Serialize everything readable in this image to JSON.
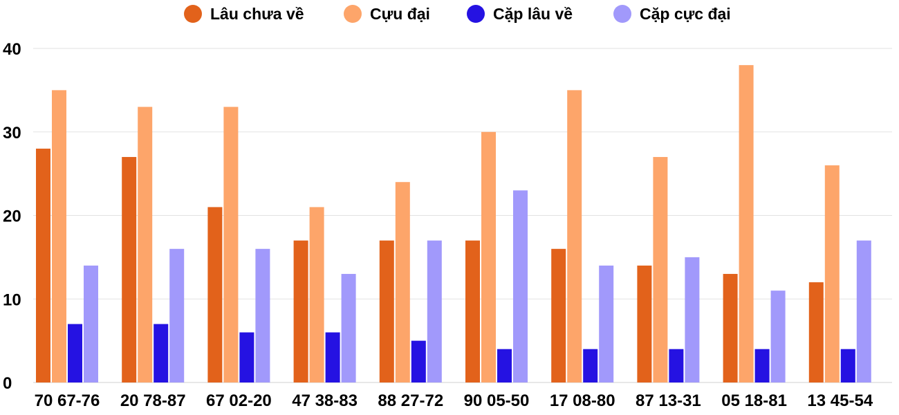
{
  "chart_data": {
    "type": "bar",
    "categories": [
      "70 67-76",
      "20 78-87",
      "67 02-20",
      "47 38-83",
      "88 27-72",
      "90 05-50",
      "17 08-80",
      "87 13-31",
      "05 18-81",
      "13 45-54"
    ],
    "series": [
      {
        "name": "Lâu chưa về",
        "color": "#e2621b",
        "values": [
          28,
          27,
          21,
          17,
          17,
          17,
          16,
          14,
          13,
          12
        ]
      },
      {
        "name": "Cựu đại",
        "color": "#fda56a",
        "values": [
          35,
          33,
          33,
          21,
          24,
          30,
          35,
          27,
          38,
          26
        ]
      },
      {
        "name": "Cặp lâu về",
        "color": "#2512e2",
        "values": [
          7,
          7,
          6,
          6,
          5,
          4,
          4,
          4,
          4,
          4
        ]
      },
      {
        "name": "Cặp cực đại",
        "color": "#a199fb",
        "values": [
          14,
          16,
          16,
          13,
          17,
          23,
          14,
          15,
          11,
          17
        ]
      }
    ],
    "yticks": [
      "0",
      "10",
      "20",
      "30",
      "40"
    ],
    "ylim": [
      0,
      40
    ],
    "grid": true,
    "legend_position": "top-center",
    "xlabel": "",
    "ylabel": ""
  }
}
